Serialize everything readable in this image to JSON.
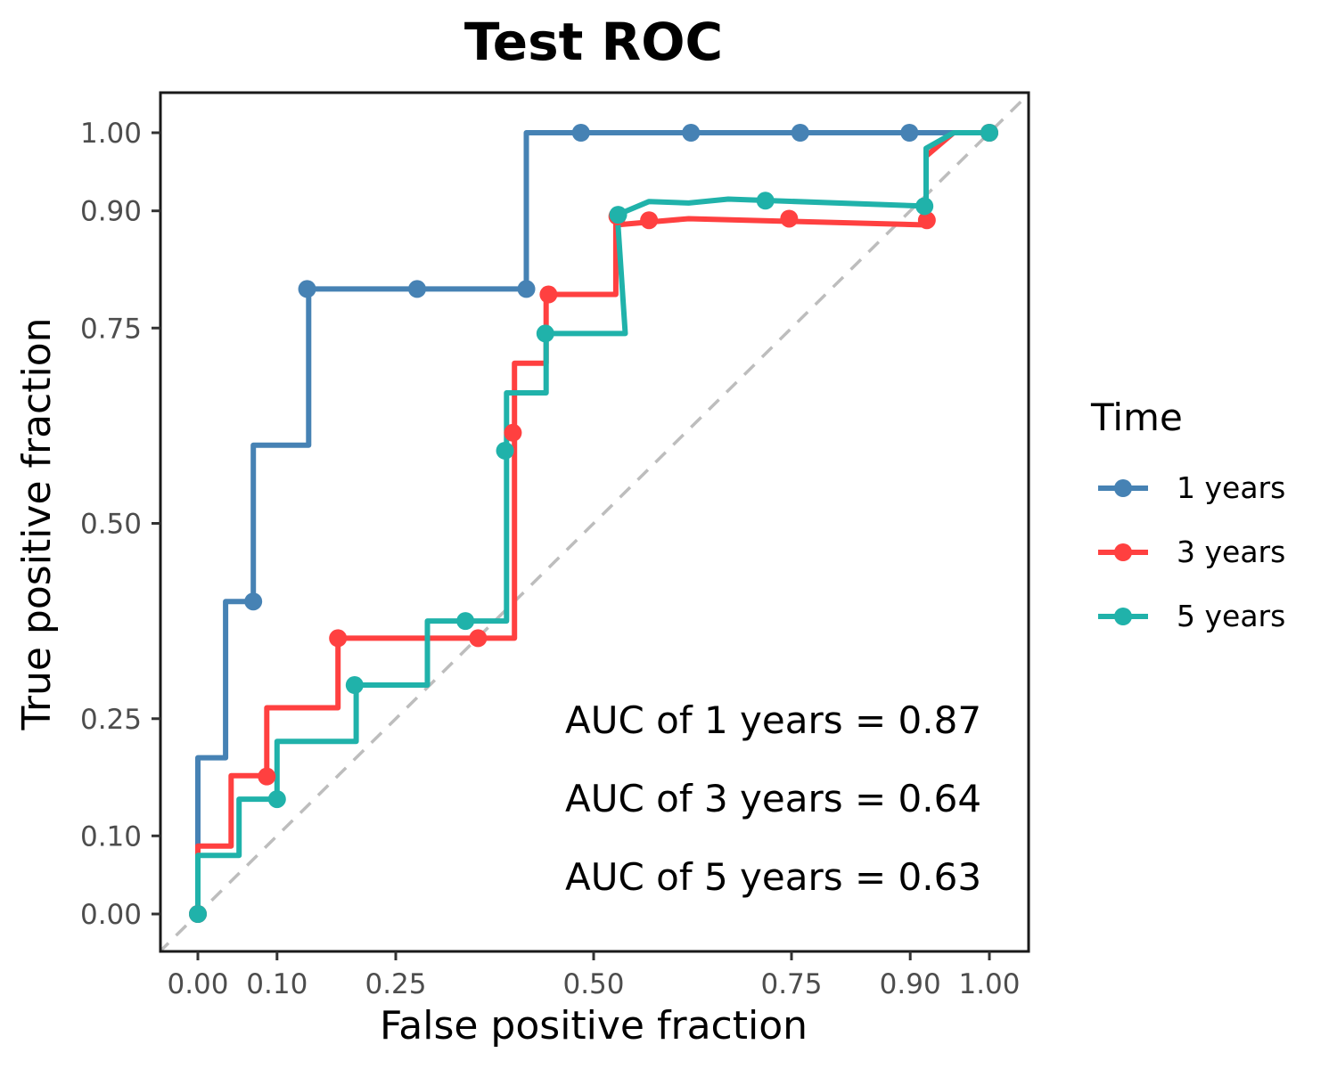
{
  "chart_data": {
    "type": "line",
    "title": "Test ROC",
    "xlabel": "False positive fraction",
    "ylabel": "True positive fraction",
    "xlim": [
      0,
      1
    ],
    "ylim": [
      0,
      1
    ],
    "xticks": [
      0.0,
      0.1,
      0.25,
      0.5,
      0.75,
      0.9,
      1.0
    ],
    "xtick_labels": [
      "0.00",
      "0.10",
      "0.25",
      "0.50",
      "0.75",
      "0.90",
      "1.00"
    ],
    "yticks": [
      0.0,
      0.1,
      0.25,
      0.5,
      0.75,
      0.9,
      1.0
    ],
    "ytick_labels": [
      "0.00",
      "0.10",
      "0.25",
      "0.50",
      "0.75",
      "0.90",
      "1.00"
    ],
    "grid": false,
    "reference_line": "diagonal dashed",
    "legend": {
      "title": "Time",
      "position": "right"
    },
    "series": [
      {
        "name": "1 years",
        "color": "#4682B4",
        "x": [
          0.0,
          0.0,
          0.035,
          0.035,
          0.07,
          0.07,
          0.14,
          0.14,
          0.415,
          0.415,
          1.0
        ],
        "y": [
          0.0,
          0.2,
          0.2,
          0.4,
          0.4,
          0.6,
          0.6,
          0.8,
          0.8,
          1.0,
          1.0
        ],
        "points_x": [
          0.0,
          0.07,
          0.138,
          0.277,
          0.415,
          0.484,
          0.623,
          0.761,
          0.899,
          1.0
        ],
        "points_y": [
          0.0,
          0.4,
          0.8,
          0.8,
          0.8,
          1.0,
          1.0,
          1.0,
          1.0,
          1.0
        ]
      },
      {
        "name": "3 years",
        "color": "#FF4040",
        "x": [
          0.0,
          0.0,
          0.042,
          0.042,
          0.087,
          0.087,
          0.177,
          0.177,
          0.4,
          0.4,
          0.44,
          0.44,
          0.528,
          0.528,
          0.62,
          0.92,
          0.92,
          0.955,
          1.0
        ],
        "y": [
          0.0,
          0.087,
          0.087,
          0.177,
          0.177,
          0.264,
          0.264,
          0.353,
          0.353,
          0.705,
          0.705,
          0.793,
          0.793,
          0.882,
          0.89,
          0.882,
          0.97,
          1.0,
          1.0
        ],
        "points_x": [
          0.0,
          0.087,
          0.177,
          0.354,
          0.398,
          0.443,
          0.53,
          0.57,
          0.747,
          0.921,
          1.0
        ],
        "points_y": [
          0.0,
          0.176,
          0.353,
          0.353,
          0.616,
          0.793,
          0.893,
          0.888,
          0.89,
          0.888,
          1.0
        ]
      },
      {
        "name": "5 years",
        "color": "#20B2AA",
        "x": [
          0.0,
          0.0,
          0.052,
          0.052,
          0.1,
          0.1,
          0.2,
          0.2,
          0.29,
          0.29,
          0.39,
          0.39,
          0.44,
          0.44,
          0.54,
          0.53,
          0.57,
          0.62,
          0.67,
          0.92,
          0.92,
          0.955,
          1.0
        ],
        "y": [
          0.0,
          0.075,
          0.075,
          0.147,
          0.147,
          0.221,
          0.221,
          0.293,
          0.293,
          0.375,
          0.375,
          0.667,
          0.667,
          0.743,
          0.743,
          0.895,
          0.912,
          0.91,
          0.915,
          0.906,
          0.98,
          1.0,
          1.0
        ],
        "points_x": [
          0.0,
          0.1,
          0.198,
          0.338,
          0.388,
          0.439,
          0.531,
          0.717,
          0.918,
          1.0
        ],
        "points_y": [
          0.0,
          0.147,
          0.293,
          0.375,
          0.593,
          0.743,
          0.895,
          0.913,
          0.906,
          1.0
        ]
      }
    ],
    "annotations": [
      "AUC of 1 years = 0.87",
      "AUC of 3 years = 0.64",
      "AUC of 5 years = 0.63"
    ]
  }
}
